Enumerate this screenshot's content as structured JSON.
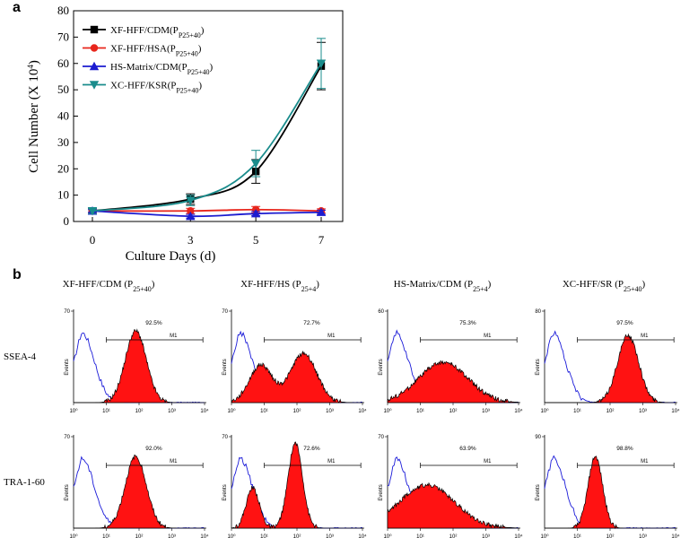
{
  "panel_a_letter": "a",
  "panel_b_letter": "b",
  "chart_data": [
    {
      "type": "line",
      "panel": "a",
      "xlabel": "Culture Days (d)",
      "ylabel_main": "Cell Number (X 10",
      "ylabel_sup": "4",
      "ylabel_end": ")",
      "x": [
        0,
        3,
        5,
        7
      ],
      "xticks": [
        "0",
        "3",
        "5",
        "7"
      ],
      "yticks": [
        "0",
        "10",
        "20",
        "30",
        "40",
        "50",
        "60",
        "70",
        "80"
      ],
      "ylim": [
        0,
        80
      ],
      "legend_position": "top-left",
      "series": [
        {
          "name": "XF-HFF/CDM",
          "sub": "P25+40",
          "color": "#000000",
          "marker": "square",
          "values": [
            4,
            8.5,
            19,
            59
          ],
          "errors": [
            1,
            2,
            4.5,
            9
          ]
        },
        {
          "name": "XF-HFF/HSA",
          "sub": "P25+40",
          "color": "#e8261c",
          "marker": "circle",
          "values": [
            4,
            4,
            4.5,
            4
          ],
          "errors": [
            0.5,
            1,
            1.2,
            0.8
          ]
        },
        {
          "name": "HS-Matrix/CDM",
          "sub": "P25+40",
          "color": "#1c1cd0",
          "marker": "triangle-up",
          "values": [
            4,
            2,
            3,
            3.5
          ],
          "errors": [
            0.5,
            0.7,
            0.8,
            0.8
          ]
        },
        {
          "name": "XC-HFF/KSR",
          "sub": "P25+40",
          "color": "#1a8c8c",
          "marker": "triangle-down",
          "values": [
            4,
            8,
            22,
            60
          ],
          "errors": [
            1,
            2,
            5,
            9.5
          ]
        }
      ]
    },
    {
      "type": "area",
      "panel": "b",
      "x_axis": "log",
      "x_tick_labels": [
        "10⁰",
        "10¹",
        "10²",
        "10³",
        "10⁴"
      ],
      "y_axis_label": "Events",
      "gate_label": "M1",
      "columns": [
        {
          "title": "XF-HFF/CDM (P",
          "sub": "25+40",
          "end": ")"
        },
        {
          "title": "XF-HFF/HS (P",
          "sub": "25+4",
          "end": ")"
        },
        {
          "title": "HS-Matrix/CDM (P",
          "sub": "25+4",
          "end": ")"
        },
        {
          "title": "XC-HFF/SR (P",
          "sub": "25+40",
          "end": ")"
        }
      ],
      "rows": [
        "SSEA-4",
        "TRA-1-60"
      ],
      "plots": [
        {
          "row": "SSEA-4",
          "col": 0,
          "ymax": "70",
          "percent": "92.5%",
          "peaks": [
            {
              "mu": 1.9,
              "sd": 0.32,
              "h": 0.8
            }
          ]
        },
        {
          "row": "SSEA-4",
          "col": 1,
          "ymax": "70",
          "percent": "72.7%",
          "peaks": [
            {
              "mu": 0.9,
              "sd": 0.35,
              "h": 0.42
            },
            {
              "mu": 2.2,
              "sd": 0.4,
              "h": 0.55
            }
          ]
        },
        {
          "row": "SSEA-4",
          "col": 2,
          "ymax": "60",
          "percent": "75.3%",
          "peaks": [
            {
              "mu": 1.7,
              "sd": 0.75,
              "h": 0.45
            }
          ]
        },
        {
          "row": "SSEA-4",
          "col": 3,
          "ymax": "80",
          "percent": "97.5%",
          "peaks": [
            {
              "mu": 2.55,
              "sd": 0.32,
              "h": 0.75
            }
          ]
        },
        {
          "row": "TRA-1-60",
          "col": 0,
          "ymax": "70",
          "percent": "92.0%",
          "peaks": [
            {
              "mu": 1.9,
              "sd": 0.32,
              "h": 0.8
            }
          ]
        },
        {
          "row": "TRA-1-60",
          "col": 1,
          "ymax": "70",
          "percent": "72.6%",
          "peaks": [
            {
              "mu": 0.65,
              "sd": 0.2,
              "h": 0.45
            },
            {
              "mu": 1.95,
              "sd": 0.22,
              "h": 0.95
            }
          ]
        },
        {
          "row": "TRA-1-60",
          "col": 2,
          "ymax": "70",
          "percent": "63.9%",
          "peaks": [
            {
              "mu": 1.2,
              "sd": 0.85,
              "h": 0.48
            }
          ]
        },
        {
          "row": "TRA-1-60",
          "col": 3,
          "ymax": "90",
          "percent": "98.8%",
          "peaks": [
            {
              "mu": 1.55,
              "sd": 0.22,
              "h": 0.8
            }
          ]
        }
      ]
    }
  ]
}
